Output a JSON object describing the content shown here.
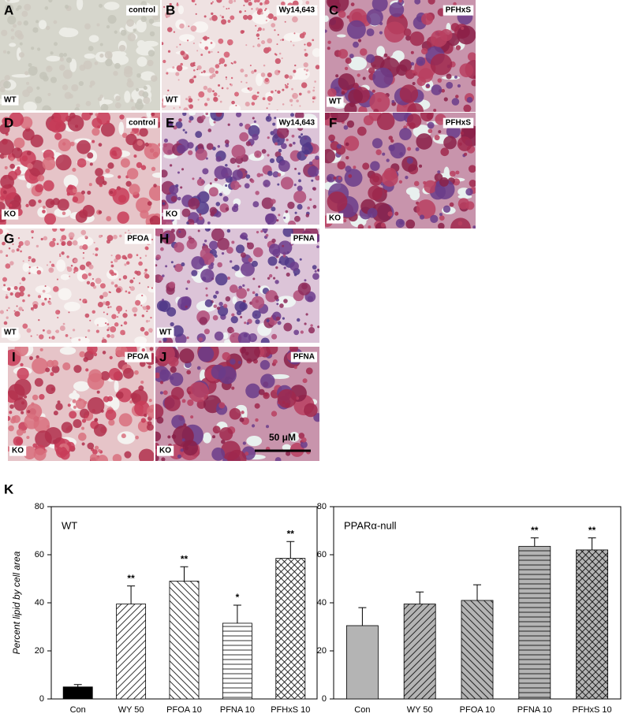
{
  "figure_label": "K",
  "panels": [
    {
      "letter": "A",
      "treatment": "control",
      "genotype": "WT"
    },
    {
      "letter": "B",
      "treatment": "Wy14,643",
      "genotype": "WT"
    },
    {
      "letter": "C",
      "treatment": "PFHxS",
      "genotype": "WT"
    },
    {
      "letter": "D",
      "treatment": "control",
      "genotype": "KO"
    },
    {
      "letter": "E",
      "treatment": "Wy14,643",
      "genotype": "KO"
    },
    {
      "letter": "F",
      "treatment": "PFHxS",
      "genotype": "KO"
    },
    {
      "letter": "G",
      "treatment": "PFOA",
      "genotype": "WT"
    },
    {
      "letter": "H",
      "treatment": "PFNA",
      "genotype": "WT"
    },
    {
      "letter": "I",
      "treatment": "PFOA",
      "genotype": "KO"
    },
    {
      "letter": "J",
      "treatment": "PFNA",
      "genotype": "KO"
    }
  ],
  "scale_bar": "50 μM",
  "chart_data": [
    {
      "type": "bar",
      "title": "WT",
      "y_label": "Percent lipid by cell area",
      "categories": [
        "Con",
        "WY 50",
        "PFOA 10",
        "PFNA 10",
        "PFHxS 10"
      ],
      "values": [
        5,
        39.5,
        49,
        31.5,
        58.5
      ],
      "errors": [
        1,
        7.5,
        6,
        7.5,
        7
      ],
      "significance": [
        null,
        "**",
        "**",
        "*",
        "**"
      ],
      "colors": [
        "#000000",
        "#ffffff",
        "#ffffff",
        "#ffffff",
        "#ffffff"
      ],
      "hatches": [
        "solid",
        "right-diagonal",
        "left-diagonal",
        "horizontal",
        "cross"
      ],
      "ylim": [
        0,
        80
      ],
      "yticks": [
        0,
        20,
        40,
        60,
        80
      ]
    },
    {
      "type": "bar",
      "title": "PPARα-null",
      "categories": [
        "Con",
        "WY 50",
        "PFOA 10",
        "PFNA 10",
        "PFHxS 10"
      ],
      "values": [
        30.5,
        39.5,
        41,
        63.5,
        62
      ],
      "errors": [
        7.5,
        5,
        6.5,
        3.5,
        5
      ],
      "significance": [
        null,
        null,
        null,
        "**",
        "**"
      ],
      "colors": [
        "#b4b4b4",
        "#b4b4b4",
        "#b4b4b4",
        "#b4b4b4",
        "#b4b4b4"
      ],
      "hatches": [
        "solid",
        "right-diagonal",
        "left-diagonal",
        "horizontal",
        "cross"
      ],
      "ylim": [
        0,
        80
      ],
      "yticks": [
        0,
        20,
        40,
        60,
        80
      ]
    }
  ]
}
